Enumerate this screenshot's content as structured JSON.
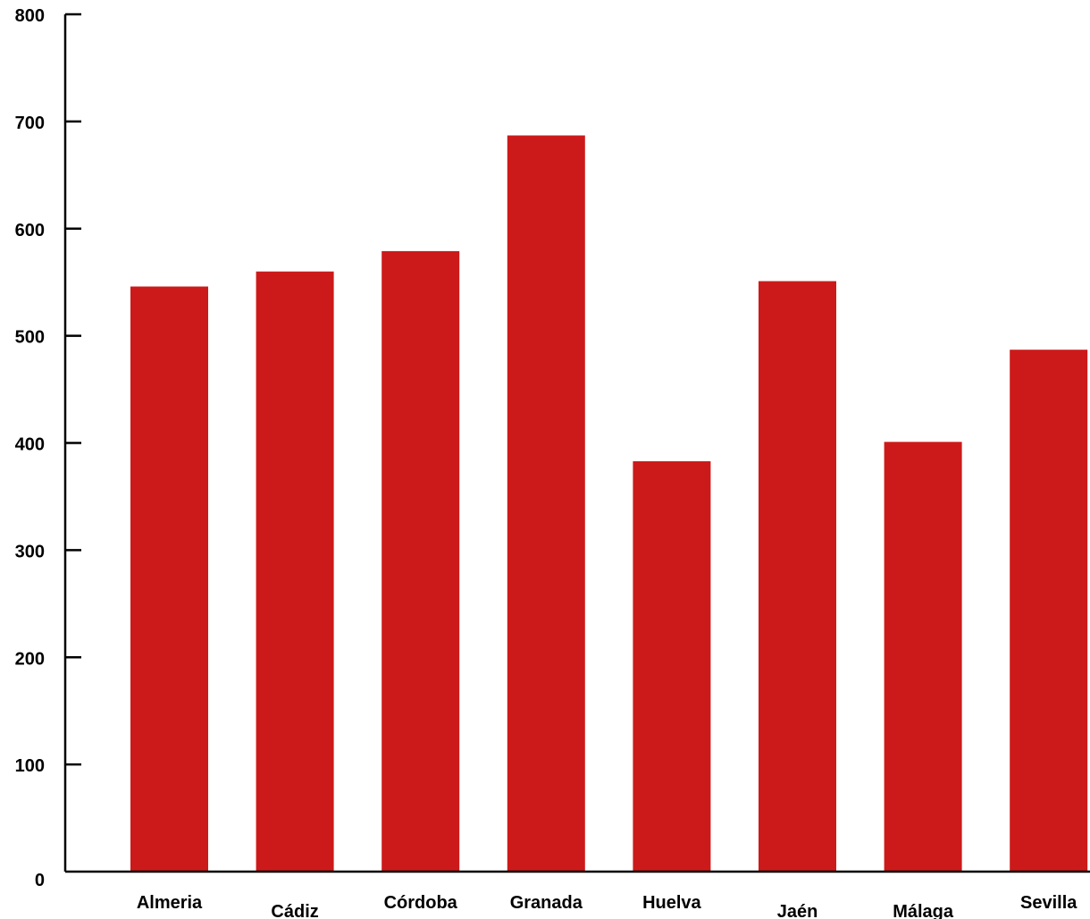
{
  "chart_data": {
    "type": "bar",
    "categories": [
      "Almeria",
      "Cádiz",
      "Córdoba",
      "Granada",
      "Huelva",
      "Jaén",
      "Málaga",
      "Sevilla"
    ],
    "values": [
      546,
      560,
      579,
      687,
      383,
      551,
      401,
      487
    ],
    "title": "",
    "xlabel": "",
    "ylabel": "",
    "ylim": [
      0,
      800
    ],
    "yticks": [
      "0",
      "100",
      "200",
      "300",
      "400",
      "500",
      "600",
      "700",
      "800"
    ],
    "grid": false,
    "legend": "none",
    "bar_color": "#cc1a1a",
    "axis_color": "#000000"
  }
}
